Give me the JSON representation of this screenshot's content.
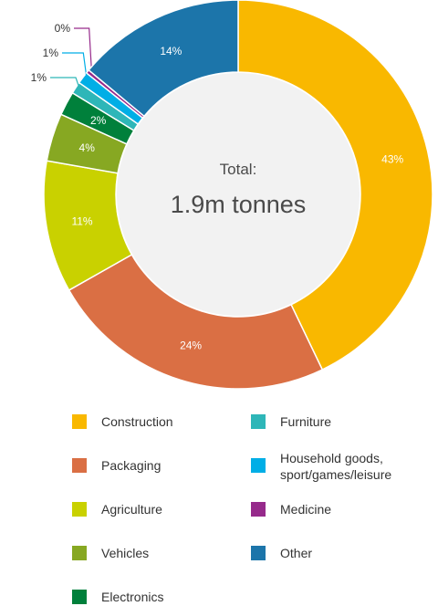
{
  "chart_data": {
    "type": "pie",
    "variant": "donut",
    "center_title": "Total:",
    "center_value": "1.9m tonnes",
    "slices": [
      {
        "name": "Construction",
        "value": 43,
        "label": "43%",
        "color": "#F9B800"
      },
      {
        "name": "Packaging",
        "value": 24,
        "label": "24%",
        "color": "#DA6F44"
      },
      {
        "name": "Agriculture",
        "value": 11,
        "label": "11%",
        "color": "#C9D100"
      },
      {
        "name": "Vehicles",
        "value": 4,
        "label": "4%",
        "color": "#87A822"
      },
      {
        "name": "Electronics",
        "value": 2,
        "label": "2%",
        "color": "#00803B"
      },
      {
        "name": "Furniture",
        "value": 1,
        "label": "1%",
        "color": "#2EB6B8"
      },
      {
        "name": "Household goods, sport/games/leisure",
        "value": 1,
        "label": "1%",
        "color": "#00AEE6"
      },
      {
        "name": "Medicine",
        "value": 0.3,
        "label": "0%",
        "color": "#962A8B"
      },
      {
        "name": "Other",
        "value": 14,
        "label": "14%",
        "color": "#1C75AA"
      }
    ],
    "legend": [
      {
        "label": "Construction",
        "color": "#F9B800"
      },
      {
        "label": "Packaging",
        "color": "#DA6F44"
      },
      {
        "label": "Agriculture",
        "color": "#C9D100"
      },
      {
        "label": "Vehicles",
        "color": "#87A822"
      },
      {
        "label": "Electronics",
        "color": "#00803B"
      },
      {
        "label": "Furniture",
        "color": "#2EB6B8"
      },
      {
        "label": "Household goods,\nsport/games/leisure",
        "color": "#00AEE6"
      },
      {
        "label": "Medicine",
        "color": "#962A8B"
      },
      {
        "label": "Other",
        "color": "#1C75AA"
      }
    ],
    "legend_placement": "bottom",
    "center_fill": "#F2F2F2"
  }
}
